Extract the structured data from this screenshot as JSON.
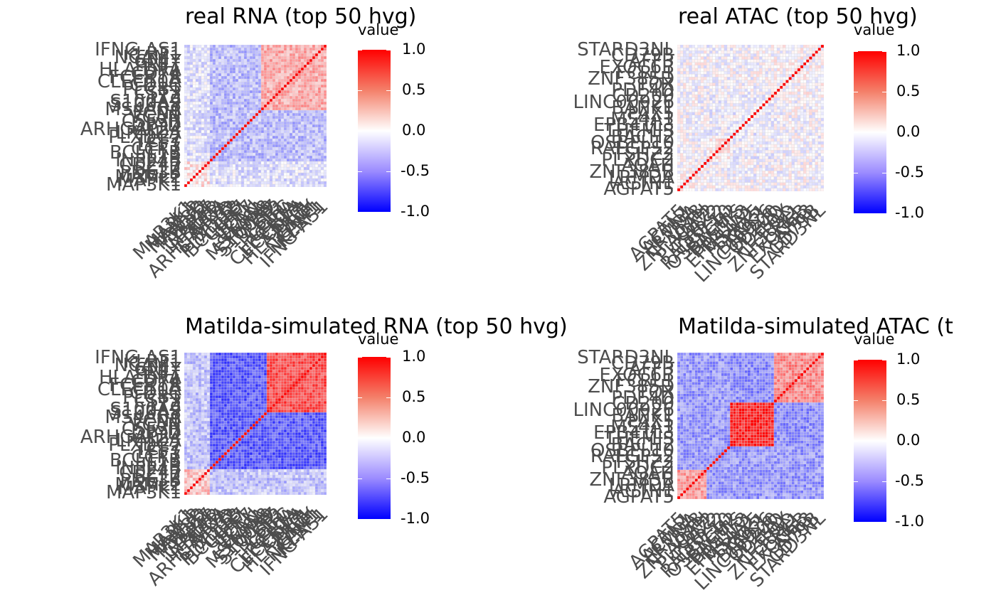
{
  "chart_data": [
    {
      "type": "heatmap",
      "title": "real RNA (top 50 hvg)",
      "legend_title": "value",
      "scale": {
        "min": -1.0,
        "max": 1.0,
        "ticks": [
          "1.0",
          "0.5",
          "0.0",
          "-0.5",
          "-1.0"
        ],
        "low": "#0000ff",
        "mid": "#ffffff",
        "high": "#ff0000"
      },
      "n": 50,
      "y_labels": [
        "IFNG-AS1",
        "KLRF1",
        "NCAM1",
        "GNLY",
        "PRF1",
        "HLA-DRA",
        "CD74",
        "FCER1A",
        "CLEC10A",
        "CD1C",
        "PLCB1",
        "CST3",
        "LYZ",
        "S100A9",
        "S100A8",
        "MS4A6A",
        "FCN1",
        "VCAN",
        "CSF3R",
        "DPYD",
        "ARHGAP24",
        "LRMDA",
        "PLXDC2",
        "TCF7",
        "LEF1",
        "CCR7",
        "BCL11B",
        "IL7R",
        "INPP4B",
        "CD247",
        "BCL2",
        "PDE3B",
        "MAML2",
        "MAPK1",
        "MAP3K1"
      ],
      "x_labels": [
        "MAP3K1",
        "MAPK1",
        "MAML2",
        "PDE3B",
        "BCL2",
        "CD247",
        "INPP4B",
        "IL7R",
        "ARHGAP24",
        "LRMDA",
        "DPYD",
        "PLXDC2",
        "BCL11B",
        "CCR7",
        "LEF1",
        "TCF7",
        "VCAN",
        "FCN1",
        "MS4A6A",
        "S100A8",
        "S100A9",
        "LYZ",
        "CST3",
        "PLCB1",
        "CD1C",
        "CLEC10A",
        "FCER1A",
        "CD74",
        "HLA-DRA",
        "PRF1",
        "GNLY",
        "NCAM1",
        "KLRF1",
        "IFNG-AS1"
      ],
      "blocks": [
        [
          0,
          9,
          0.2
        ],
        [
          9,
          27,
          -0.45
        ],
        [
          27,
          50,
          0.55
        ]
      ],
      "intensity": 0.55
    },
    {
      "type": "heatmap",
      "title": "real ATAC (top 50 hvg)",
      "legend_title": "value",
      "scale": {
        "min": -1.0,
        "max": 1.0,
        "ticks": [
          "1.0",
          "0.5",
          "0.0",
          "-0.5",
          "-1.0"
        ],
        "low": "#0000ff",
        "mid": "#ffffff",
        "high": "#ff0000"
      },
      "n": 50,
      "y_labels": [
        "STARD3NL",
        "CD79B",
        "AFF3",
        "EXOC6B",
        "FCRL1",
        "ZNF385D",
        "TOX",
        "PDE4D",
        "CD200",
        "LINC00926",
        "BANK1",
        "PAX5",
        "MS4A1",
        "EPB41L3",
        "THEMIS",
        "BACH2",
        "OSBPL10",
        "RALGPS2",
        "TSHZ2",
        "PLXDC2",
        "AOAH",
        "ZNF385B",
        "LRMDA",
        "ACTN1",
        "AGPAT5"
      ],
      "x_labels": [
        "AGPAT5",
        "ACTN1",
        "LRMDA",
        "ZNF385B",
        "AOAH",
        "PLXDC2",
        "TSHZ2",
        "RALGPS2",
        "OSBPL10",
        "BACH2",
        "THEMIS",
        "EPB41L3",
        "MS4A1",
        "PAX5",
        "BANK1",
        "LINC00926",
        "CD200",
        "PDE4D",
        "TOX",
        "ZNF385D",
        "FCRL1",
        "EXOC6B",
        "AFF3",
        "CD79B",
        "STARD3NL"
      ],
      "blocks": [
        [
          0,
          10,
          0.05
        ],
        [
          10,
          18,
          0.3
        ],
        [
          18,
          33,
          -0.15
        ],
        [
          33,
          50,
          0.05
        ]
      ],
      "intensity": 0.3
    },
    {
      "type": "heatmap",
      "title": "Matilda-simulated RNA (top 50 hvg)",
      "legend_title": "value",
      "scale": {
        "min": -1.0,
        "max": 1.0,
        "ticks": [
          "1.0",
          "0.5",
          "0.0",
          "-0.5",
          "-1.0"
        ],
        "low": "#0000ff",
        "mid": "#ffffff",
        "high": "#ff0000"
      },
      "n": 50,
      "y_labels": [
        "IFNG-AS1",
        "KLRF1",
        "NCAM1",
        "GNLY",
        "PRF1",
        "HLA-DRA",
        "CD74",
        "FCER1A",
        "CLEC10A",
        "CD1C",
        "PLCB1",
        "CST3",
        "LYZ",
        "S100A9",
        "S100A8",
        "MS4A6A",
        "FCN1",
        "VCAN",
        "CSF3R",
        "DPYD",
        "ARHGAP24",
        "LRMDA",
        "PLXDC2",
        "TCF7",
        "LEF1",
        "CCR7",
        "BCL11B",
        "IL7R",
        "INPP4B",
        "CD247",
        "BCL2",
        "PDE3B",
        "MAML2",
        "MAPK1",
        "MAP3K1"
      ],
      "x_labels": [
        "MAP3K1",
        "MAPK1",
        "MAML2",
        "PDE3B",
        "BCL2",
        "CD247",
        "INPP4B",
        "IL7R",
        "ARHGAP24",
        "LRMDA",
        "DPYD",
        "PLXDC2",
        "BCL11B",
        "CCR7",
        "LEF1",
        "TCF7",
        "VCAN",
        "FCN1",
        "MS4A6A",
        "S100A8",
        "S100A9",
        "LYZ",
        "CST3",
        "PLCB1",
        "CD1C",
        "CLEC10A",
        "FCER1A",
        "CD74",
        "HLA-DRA",
        "PRF1",
        "GNLY",
        "NCAM1",
        "KLRF1",
        "IFNG-AS1"
      ],
      "blocks": [
        [
          0,
          9,
          0.25
        ],
        [
          9,
          29,
          -0.7
        ],
        [
          29,
          50,
          0.75
        ]
      ],
      "intensity": 0.85
    },
    {
      "type": "heatmap",
      "title": "Matilda-simulated ATAC (t",
      "legend_title": "value",
      "scale": {
        "min": -1.0,
        "max": 1.0,
        "ticks": [
          "1.0",
          "0.5",
          "0.0",
          "-0.5",
          "-1.0"
        ],
        "low": "#0000ff",
        "mid": "#ffffff",
        "high": "#ff0000"
      },
      "n": 50,
      "y_labels": [
        "STARD3NL",
        "CD79B",
        "AFF3",
        "EXOC6B",
        "FCRL1",
        "ZNF385D",
        "TOX",
        "PDE4D",
        "CD200",
        "LINC00926",
        "BANK1",
        "PAX5",
        "MS4A1",
        "EPB41L3",
        "THEMIS",
        "BACH2",
        "OSBPL10",
        "RALGPS2",
        "TSHZ2",
        "PLXDC2",
        "AOAH",
        "ZNF385B",
        "LRMDA",
        "ACTN1",
        "AGPAT5"
      ],
      "x_labels": [
        "AGPAT5",
        "ACTN1",
        "LRMDA",
        "ZNF385B",
        "AOAH",
        "PLXDC2",
        "TSHZ2",
        "RALGPS2",
        "OSBPL10",
        "BACH2",
        "THEMIS",
        "EPB41L3",
        "MS4A1",
        "PAX5",
        "BANK1",
        "LINC00926",
        "CD200",
        "PDE4D",
        "TOX",
        "ZNF385D",
        "FCRL1",
        "EXOC6B",
        "AFF3",
        "CD79B",
        "STARD3NL"
      ],
      "blocks": [
        [
          0,
          10,
          0.4
        ],
        [
          10,
          18,
          -0.4
        ],
        [
          18,
          33,
          0.85
        ],
        [
          33,
          50,
          0.45
        ]
      ],
      "intensity": 0.9
    }
  ]
}
